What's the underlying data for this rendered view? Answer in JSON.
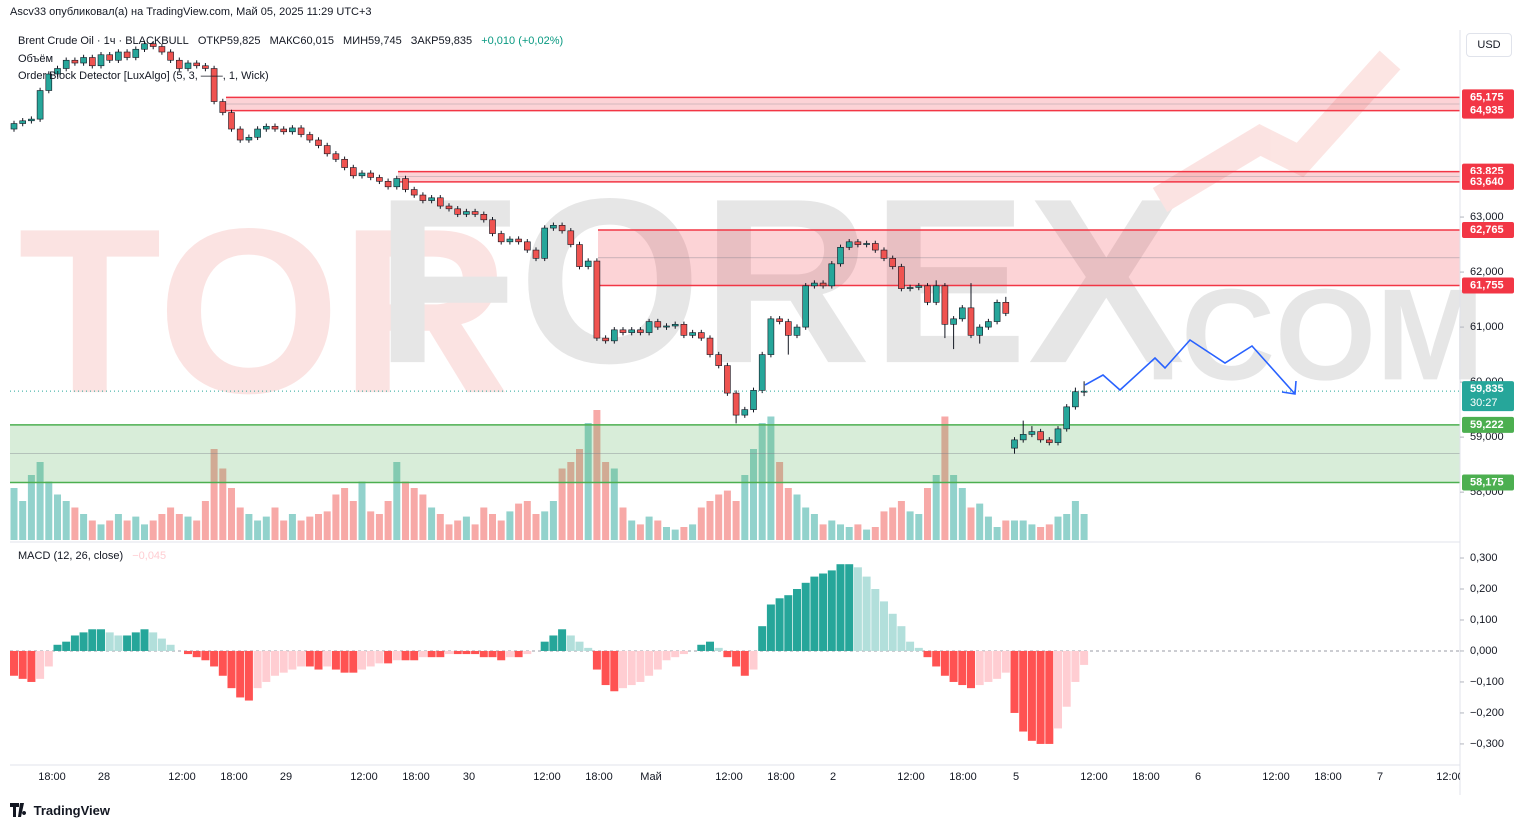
{
  "header": {
    "publisher": "Ascv33 опубликовал(а) на TradingView.com, Май 05, 2025 11:29 UTC+3"
  },
  "currency_button": "USD",
  "footer": "TradingView",
  "chart_data": {
    "type": "candlestick",
    "title": "Brent Crude Oil · 1ч · BLACKBULL",
    "legend": [
      "ОТКР59,825",
      "МАКС60,015",
      "МИН59,745",
      "ЗАКР59,835",
      "+0,010 (+0,02%)"
    ],
    "indicators": [
      "Объём",
      "Order Block Detector [LuxAlgo] (5, 3, ——, 1, Wick)"
    ],
    "watermark": [
      "TOR",
      "FOREX",
      ".COM"
    ],
    "up_color": "#26a69a",
    "down_color": "#ef5350",
    "open": [
      64.6,
      64.7,
      64.75,
      64.78,
      65.3,
      65.6,
      65.7,
      65.85,
      65.8,
      65.9,
      65.75,
      65.95,
      65.85,
      66.0,
      65.9,
      66.05,
      66.15,
      66.1,
      66.0,
      65.85,
      65.7,
      65.8,
      65.75,
      65.7,
      65.1,
      64.9,
      64.6,
      64.4,
      64.45,
      64.6,
      64.65,
      64.6,
      64.55,
      64.62,
      64.5,
      64.4,
      64.3,
      64.15,
      64.05,
      63.9,
      63.75,
      63.8,
      63.72,
      63.65,
      63.55,
      63.7,
      63.5,
      63.4,
      63.3,
      63.35,
      63.2,
      63.15,
      63.05,
      63.1,
      63.05,
      62.95,
      62.7,
      62.55,
      62.6,
      62.55,
      62.4,
      62.25,
      62.8,
      62.85,
      62.75,
      62.5,
      62.1,
      62.2,
      60.8,
      60.75,
      60.95,
      60.9,
      60.95,
      60.9,
      61.1,
      61.0,
      61.02,
      61.05,
      60.85,
      60.9,
      60.8,
      60.5,
      60.3,
      59.8,
      59.4,
      59.5,
      59.85,
      60.5,
      61.15,
      61.1,
      60.85,
      61.0,
      61.75,
      61.8,
      61.75,
      62.15,
      62.45,
      62.55,
      62.5,
      62.52,
      62.4,
      62.25,
      62.1,
      61.7,
      61.72,
      61.75,
      61.45,
      61.75,
      61.05,
      61.15,
      61.35,
      60.85,
      61.0,
      61.1,
      61.45,
      58.8,
      58.95,
      59.05,
      59.1,
      58.95,
      58.9,
      59.15,
      59.55,
      59.825
    ],
    "high": [
      64.75,
      64.8,
      64.83,
      65.35,
      65.65,
      65.75,
      65.9,
      65.9,
      65.95,
      65.95,
      66.0,
      66.0,
      66.05,
      66.05,
      66.1,
      66.2,
      66.2,
      66.15,
      66.05,
      65.9,
      65.85,
      65.85,
      65.8,
      65.75,
      65.15,
      64.95,
      64.65,
      64.5,
      64.65,
      64.7,
      64.7,
      64.65,
      64.67,
      64.67,
      64.55,
      64.45,
      64.35,
      64.2,
      64.1,
      63.95,
      63.85,
      63.85,
      63.77,
      63.7,
      63.75,
      63.75,
      63.55,
      63.45,
      63.4,
      63.4,
      63.25,
      63.2,
      63.15,
      63.15,
      63.1,
      63.0,
      62.75,
      62.65,
      62.65,
      62.6,
      62.45,
      62.85,
      62.9,
      62.9,
      62.8,
      62.55,
      62.25,
      62.25,
      60.85,
      61.0,
      61.0,
      61.0,
      61.0,
      61.15,
      61.15,
      61.07,
      61.1,
      61.1,
      60.95,
      60.95,
      60.85,
      60.55,
      60.35,
      59.85,
      59.55,
      59.9,
      60.55,
      61.2,
      61.2,
      61.15,
      61.05,
      61.8,
      61.85,
      61.85,
      62.2,
      62.5,
      62.6,
      62.6,
      62.57,
      62.57,
      62.45,
      62.3,
      62.15,
      61.77,
      61.8,
      61.8,
      61.85,
      61.8,
      61.2,
      61.4,
      61.8,
      61.05,
      61.15,
      61.5,
      61.55,
      59.0,
      59.3,
      59.2,
      59.15,
      59.0,
      59.2,
      59.6,
      59.9,
      60.015
    ],
    "low": [
      64.55,
      64.65,
      64.7,
      64.73,
      65.25,
      65.55,
      65.65,
      65.75,
      65.75,
      65.7,
      65.7,
      65.8,
      65.8,
      65.85,
      65.85,
      66.0,
      66.05,
      65.95,
      65.8,
      65.65,
      65.65,
      65.7,
      65.65,
      65.05,
      64.85,
      64.55,
      64.35,
      64.35,
      64.4,
      64.55,
      64.55,
      64.5,
      64.5,
      64.45,
      64.35,
      64.25,
      64.1,
      64.0,
      63.85,
      63.7,
      63.7,
      63.67,
      63.6,
      63.5,
      63.5,
      63.45,
      63.35,
      63.25,
      63.25,
      63.15,
      63.1,
      63.0,
      63.0,
      63.0,
      62.9,
      62.65,
      62.5,
      62.5,
      62.5,
      62.35,
      62.2,
      62.2,
      62.75,
      62.7,
      62.45,
      62.05,
      62.05,
      60.75,
      60.7,
      60.7,
      60.85,
      60.85,
      60.85,
      60.85,
      60.95,
      60.95,
      60.97,
      60.8,
      60.8,
      60.75,
      60.45,
      60.25,
      59.75,
      59.25,
      59.35,
      59.45,
      59.8,
      60.45,
      61.05,
      60.5,
      60.8,
      60.95,
      61.7,
      61.7,
      61.7,
      62.1,
      62.4,
      62.45,
      62.45,
      62.35,
      62.2,
      62.05,
      61.65,
      61.65,
      61.67,
      61.4,
      61.4,
      60.8,
      60.6,
      61.1,
      60.8,
      60.7,
      60.95,
      61.05,
      61.2,
      58.7,
      58.9,
      59.0,
      58.9,
      58.85,
      58.85,
      59.1,
      59.5,
      59.745
    ],
    "close": [
      64.7,
      64.75,
      64.78,
      65.3,
      65.6,
      65.7,
      65.85,
      65.8,
      65.9,
      65.75,
      65.95,
      65.85,
      66.0,
      65.9,
      66.05,
      66.15,
      66.1,
      66.0,
      65.85,
      65.7,
      65.8,
      65.75,
      65.7,
      65.1,
      64.9,
      64.6,
      64.4,
      64.45,
      64.6,
      64.65,
      64.6,
      64.55,
      64.62,
      64.5,
      64.4,
      64.3,
      64.15,
      64.05,
      63.9,
      63.75,
      63.8,
      63.72,
      63.65,
      63.55,
      63.7,
      63.5,
      63.4,
      63.3,
      63.35,
      63.2,
      63.15,
      63.05,
      63.1,
      63.05,
      62.95,
      62.7,
      62.55,
      62.6,
      62.55,
      62.4,
      62.25,
      62.8,
      62.85,
      62.75,
      62.5,
      62.1,
      62.2,
      60.8,
      60.75,
      60.95,
      60.9,
      60.95,
      60.9,
      61.1,
      61.0,
      61.02,
      61.05,
      60.85,
      60.9,
      60.8,
      60.5,
      60.3,
      59.8,
      59.4,
      59.5,
      59.85,
      60.5,
      61.15,
      61.1,
      60.85,
      61.0,
      61.75,
      61.8,
      61.75,
      62.15,
      62.45,
      62.55,
      62.5,
      62.52,
      62.4,
      62.25,
      62.1,
      61.7,
      61.72,
      61.75,
      61.45,
      61.75,
      61.05,
      61.15,
      61.35,
      60.85,
      61.0,
      61.1,
      61.45,
      61.25,
      58.95,
      59.05,
      59.1,
      58.95,
      58.9,
      59.15,
      59.55,
      59.825,
      59.835
    ],
    "volume": [
      40,
      30,
      50,
      60,
      45,
      35,
      30,
      25,
      20,
      15,
      12,
      15,
      20,
      15,
      18,
      12,
      15,
      20,
      25,
      20,
      18,
      15,
      30,
      70,
      55,
      40,
      25,
      20,
      15,
      18,
      25,
      15,
      20,
      15,
      18,
      20,
      22,
      35,
      40,
      30,
      45,
      22,
      20,
      30,
      60,
      45,
      40,
      35,
      25,
      20,
      12,
      15,
      18,
      12,
      25,
      20,
      15,
      22,
      28,
      30,
      20,
      22,
      30,
      55,
      60,
      70,
      90,
      100,
      60,
      55,
      25,
      15,
      12,
      18,
      15,
      10,
      8,
      10,
      12,
      25,
      30,
      35,
      38,
      30,
      50,
      70,
      90,
      95,
      60,
      40,
      35,
      25,
      20,
      12,
      15,
      12,
      10,
      12,
      8,
      10,
      22,
      25,
      30,
      22,
      20,
      40,
      50,
      95,
      50,
      40,
      25,
      28,
      18,
      10,
      15,
      15,
      15,
      12,
      10,
      12,
      18,
      20,
      30,
      20
    ],
    "ylim": [
      57.13,
      66.4
    ],
    "yticks": [
      {
        "value": 58,
        "label": "58,000"
      },
      {
        "value": 59,
        "label": "59,000"
      },
      {
        "value": 60,
        "label": "60,000"
      },
      {
        "value": 61,
        "label": "61,000"
      },
      {
        "value": 62,
        "label": "62,000"
      },
      {
        "value": 63,
        "label": "63,000"
      }
    ],
    "x_labels": [
      "18:00",
      "28",
      "12:00",
      "18:00",
      "29",
      "12:00",
      "18:00",
      "30",
      "12:00",
      "18:00",
      "Май",
      "12:00",
      "18:00",
      "2",
      "12:00",
      "18:00",
      "5",
      "12:00",
      "18:00",
      "6",
      "12:00",
      "18:00",
      "7",
      "12:00"
    ],
    "zones": [
      {
        "kind": "bearish",
        "high": {
          "value": 65.175,
          "label": "65,175"
        },
        "low": {
          "value": 64.935,
          "label": "64,935"
        }
      },
      {
        "kind": "bearish",
        "high": {
          "value": 63.825,
          "label": "63,825"
        },
        "low": {
          "value": 63.64,
          "label": "63,640"
        }
      },
      {
        "kind": "bearish",
        "high": {
          "value": 62.765,
          "label": "62,765"
        },
        "low": {
          "value": 61.755,
          "label": "61,755"
        }
      },
      {
        "kind": "bullish",
        "high": {
          "value": 59.222,
          "label": "59,222"
        },
        "low": {
          "value": 58.175,
          "label": "58,175"
        }
      }
    ],
    "last_price": {
      "value": 59.835,
      "label": "59,835"
    },
    "countdown": "30:27",
    "macd": {
      "title": "MACD (12, 26, close)",
      "last_label": "−0,045",
      "values": [
        -0.08,
        -0.09,
        -0.1,
        -0.09,
        -0.05,
        0.02,
        0.03,
        0.05,
        0.06,
        0.07,
        0.07,
        0.06,
        0.05,
        0.05,
        0.06,
        0.07,
        0.06,
        0.04,
        0.02,
        0.0,
        -0.01,
        -0.02,
        -0.03,
        -0.05,
        -0.08,
        -0.12,
        -0.15,
        -0.16,
        -0.12,
        -0.1,
        -0.08,
        -0.07,
        -0.06,
        -0.05,
        -0.05,
        -0.06,
        -0.05,
        -0.06,
        -0.07,
        -0.07,
        -0.06,
        -0.05,
        -0.04,
        -0.04,
        -0.03,
        -0.03,
        -0.03,
        -0.02,
        -0.02,
        -0.02,
        -0.01,
        -0.01,
        -0.01,
        -0.01,
        -0.02,
        -0.02,
        -0.03,
        -0.02,
        -0.02,
        -0.01,
        0.0,
        0.03,
        0.05,
        0.07,
        0.05,
        0.03,
        0.01,
        -0.06,
        -0.11,
        -0.13,
        -0.12,
        -0.11,
        -0.1,
        -0.08,
        -0.06,
        -0.03,
        -0.02,
        -0.01,
        0.0,
        0.02,
        0.03,
        0.01,
        -0.02,
        -0.05,
        -0.08,
        -0.06,
        0.08,
        0.15,
        0.17,
        0.18,
        0.2,
        0.22,
        0.24,
        0.25,
        0.26,
        0.28,
        0.28,
        0.27,
        0.24,
        0.2,
        0.16,
        0.12,
        0.08,
        0.03,
        0.01,
        -0.02,
        -0.05,
        -0.08,
        -0.1,
        -0.11,
        -0.12,
        -0.11,
        -0.1,
        -0.09,
        -0.07,
        -0.2,
        -0.26,
        -0.29,
        -0.3,
        -0.3,
        -0.25,
        -0.18,
        -0.1,
        -0.045
      ],
      "ylim": [
        -0.368,
        0.342
      ],
      "yticks": [
        {
          "value": 0.3,
          "label": "0,300"
        },
        {
          "value": 0.2,
          "label": "0,200"
        },
        {
          "value": 0.1,
          "label": "0,100"
        },
        {
          "value": 0,
          "label": "0,000"
        },
        {
          "value": -0.1,
          "label": "−0,100"
        },
        {
          "value": -0.2,
          "label": "−0,200"
        },
        {
          "value": -0.3,
          "label": "−0,300"
        }
      ]
    }
  }
}
